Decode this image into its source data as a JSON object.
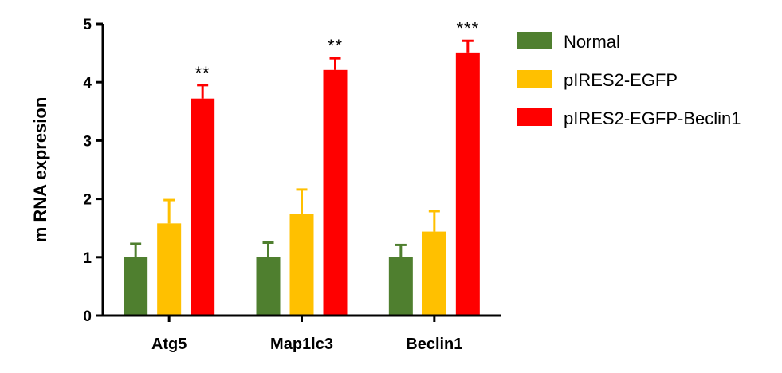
{
  "chart_data": {
    "type": "bar",
    "ylabel": "m RNA expresion",
    "xlabel": "",
    "ylim": [
      0,
      5
    ],
    "yticks": [
      "0",
      "1",
      "2",
      "3",
      "4",
      "5"
    ],
    "categories": [
      "Atg5",
      "Map1lc3",
      "Beclin1"
    ],
    "legend_position": "right",
    "series": [
      {
        "name": "Normal",
        "color": "#4f7f2f",
        "values": [
          1.0,
          1.0,
          1.0
        ],
        "errors": [
          0.23,
          0.25,
          0.21
        ]
      },
      {
        "name": "pIRES2-EGFP",
        "color": "#ffc000",
        "values": [
          1.58,
          1.74,
          1.44
        ],
        "errors": [
          0.4,
          0.42,
          0.35
        ]
      },
      {
        "name": "pIRES2-EGFP-Beclin1",
        "color": "#ff0000",
        "values": [
          3.72,
          4.21,
          4.51
        ],
        "errors": [
          0.23,
          0.2,
          0.2
        ]
      }
    ],
    "annotations": [
      "**",
      "**",
      "***"
    ]
  }
}
